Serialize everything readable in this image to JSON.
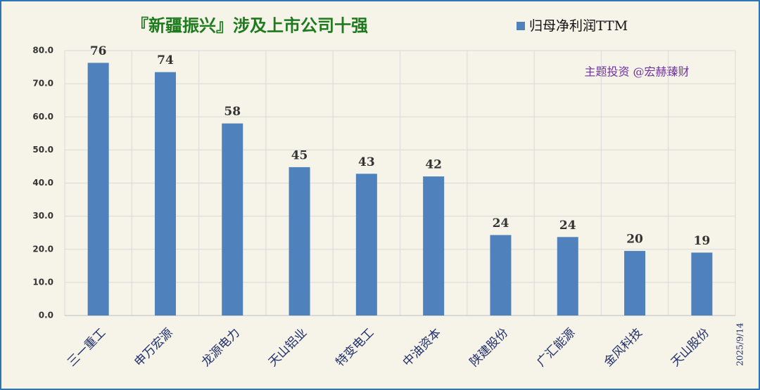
{
  "chart_data": {
    "type": "bar",
    "title": "『新疆振兴』涉及上市公司十强",
    "legend_label": "归母净利润TTM",
    "annotation": "主题投资 @宏赫臻财",
    "date": "2025/9/14",
    "categories": [
      "三一重工",
      "申万宏源",
      "龙源电力",
      "天山铝业",
      "特变电工",
      "中油资本",
      "陕建股份",
      "广汇能源",
      "金风科技",
      "天山股份"
    ],
    "series": [
      {
        "name": "归母净利润TTM",
        "color": "#4f81bd",
        "values": [
          76.3,
          73.5,
          58.0,
          44.8,
          42.8,
          42.0,
          24.3,
          23.7,
          19.5,
          19.0
        ],
        "value_labels": [
          "76",
          "74",
          "58",
          "45",
          "43",
          "42",
          "24",
          "24",
          "20",
          "19"
        ]
      }
    ],
    "ylim": [
      0,
      80
    ],
    "yticks": [
      {
        "value": 0,
        "label": "0.0"
      },
      {
        "value": 10,
        "label": "10.0"
      },
      {
        "value": 20,
        "label": "20.0"
      },
      {
        "value": 30,
        "label": "30.0"
      },
      {
        "value": 40,
        "label": "40.0"
      },
      {
        "value": 50,
        "label": "50.0"
      },
      {
        "value": 60,
        "label": "60.0"
      },
      {
        "value": 70,
        "label": "70.0"
      },
      {
        "value": 80,
        "label": "80.0"
      }
    ],
    "grid": true
  }
}
